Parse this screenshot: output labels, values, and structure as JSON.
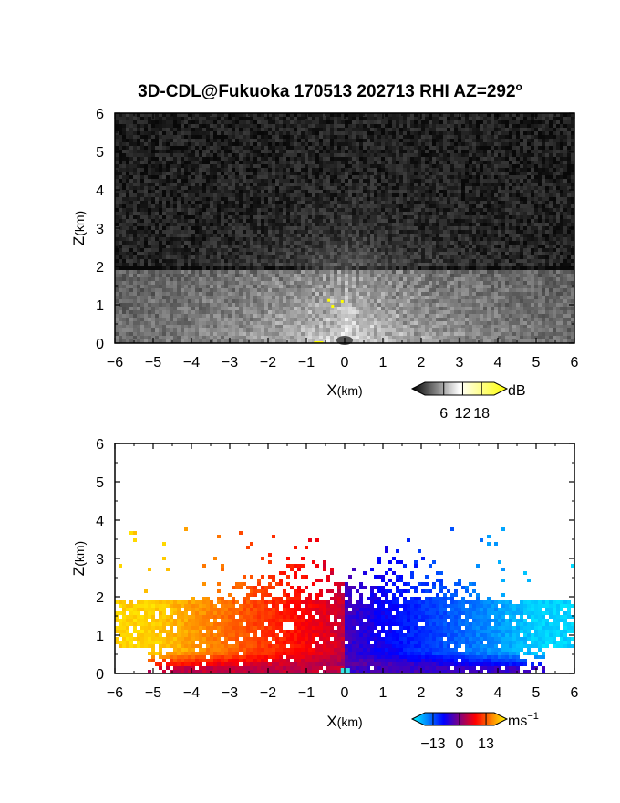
{
  "title": {
    "main": "3D-CDL@Fukuoka 170513 202713 RHI AZ=292",
    "sup": "o"
  },
  "chart_data": [
    {
      "type": "heatmap",
      "name": "reflectivity",
      "xlabel_main": "X",
      "xlabel_unit": "(km)",
      "ylabel_main": "Z",
      "ylabel_unit": "(km)",
      "xlim": [
        -6,
        6
      ],
      "ylim": [
        0,
        6
      ],
      "xticks": [
        -6,
        -5,
        -4,
        -3,
        -2,
        -1,
        0,
        1,
        2,
        3,
        4,
        5,
        6
      ],
      "yticks": [
        0,
        1,
        2,
        3,
        4,
        5,
        6
      ],
      "colorbar": {
        "unit": "dB",
        "unit_sup": "",
        "ticks": [
          6,
          12,
          18
        ],
        "range": [
          0,
          22
        ],
        "colors": [
          "#000000",
          "#ffffff",
          "#ffff00"
        ]
      }
    },
    {
      "type": "heatmap",
      "name": "doppler-velocity",
      "xlabel_main": "X",
      "xlabel_unit": "(km)",
      "ylabel_main": "Z",
      "ylabel_unit": "(km)",
      "xlim": [
        -6,
        6
      ],
      "ylim": [
        0,
        6
      ],
      "xticks": [
        -6,
        -5,
        -4,
        -3,
        -2,
        -1,
        0,
        1,
        2,
        3,
        4,
        5,
        6
      ],
      "yticks": [
        0,
        1,
        2,
        3,
        4,
        5,
        6
      ],
      "colorbar": {
        "unit": "ms",
        "unit_sup": "−1",
        "ticks": [
          -13,
          0,
          13
        ],
        "range": [
          -17,
          17
        ],
        "colors": [
          "#00ffff",
          "#0000ff",
          "#ff0000",
          "#ffff00"
        ]
      }
    }
  ]
}
